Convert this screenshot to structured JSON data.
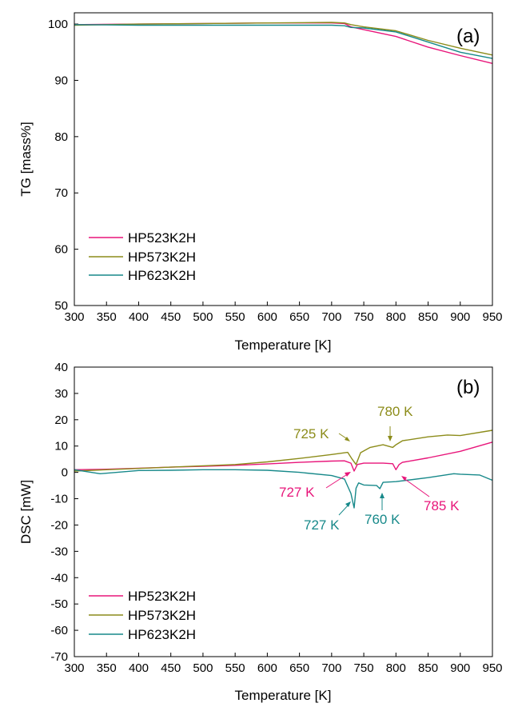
{
  "colors": {
    "HP523K2H": "#e8157a",
    "HP573K2H": "#8c8c1a",
    "HP623K2H": "#17898a"
  },
  "chart_data": [
    {
      "type": "line",
      "panel_label": "(a)",
      "xlabel": "Temperature [K]",
      "ylabel": "TG [mass%]",
      "xlim": [
        300,
        950
      ],
      "ylim": [
        50,
        102
      ],
      "x_ticks": [
        300,
        350,
        400,
        450,
        500,
        550,
        600,
        650,
        700,
        750,
        800,
        850,
        900,
        950
      ],
      "y_ticks": [
        50,
        60,
        70,
        80,
        90,
        100
      ],
      "grid": false,
      "legend_position": "lower-left",
      "series": [
        {
          "name": "HP523K2H",
          "x": [
            300,
            400,
            500,
            600,
            700,
            720,
            730,
            750,
            800,
            850,
            900,
            950
          ],
          "y": [
            99.9,
            100.0,
            100.1,
            100.2,
            100.2,
            100.1,
            99.5,
            99.0,
            97.8,
            95.9,
            94.4,
            93.0
          ]
        },
        {
          "name": "HP573K2H",
          "x": [
            300,
            400,
            500,
            600,
            700,
            720,
            730,
            750,
            800,
            850,
            900,
            950
          ],
          "y": [
            99.8,
            100.0,
            100.1,
            100.2,
            100.3,
            100.2,
            99.9,
            99.5,
            98.8,
            97.1,
            95.7,
            94.5
          ]
        },
        {
          "name": "HP623K2H",
          "x": [
            300,
            400,
            500,
            600,
            700,
            720,
            730,
            750,
            800,
            850,
            900,
            950
          ],
          "y": [
            99.9,
            99.8,
            99.8,
            99.8,
            99.8,
            99.7,
            99.4,
            99.3,
            98.6,
            96.8,
            95.0,
            93.9
          ]
        }
      ],
      "annotations": []
    },
    {
      "type": "line",
      "panel_label": "(b)",
      "xlabel": "Temperature [K]",
      "ylabel": "DSC [mW]",
      "xlim": [
        300,
        950
      ],
      "ylim": [
        -70,
        40
      ],
      "x_ticks": [
        300,
        350,
        400,
        450,
        500,
        550,
        600,
        650,
        700,
        750,
        800,
        850,
        900,
        950
      ],
      "y_ticks": [
        -70,
        -60,
        -50,
        -40,
        -30,
        -20,
        -10,
        0,
        10,
        20,
        30,
        40
      ],
      "grid": false,
      "legend_position": "lower-left",
      "series": [
        {
          "name": "HP523K2H",
          "x": [
            300,
            350,
            400,
            450,
            500,
            550,
            600,
            650,
            700,
            720,
            730,
            735,
            740,
            750,
            780,
            795,
            800,
            805,
            810,
            850,
            900,
            950
          ],
          "y": [
            1.0,
            1.2,
            1.6,
            2.0,
            2.3,
            2.7,
            3.2,
            3.8,
            4.3,
            4.4,
            3.5,
            0.5,
            3.0,
            3.5,
            3.5,
            3.3,
            1.0,
            3.0,
            3.8,
            5.5,
            8.0,
            11.5
          ]
        },
        {
          "name": "HP573K2H",
          "x": [
            300,
            350,
            400,
            450,
            500,
            550,
            600,
            650,
            700,
            725,
            732,
            738,
            745,
            760,
            780,
            795,
            800,
            810,
            850,
            880,
            900,
            950
          ],
          "y": [
            0.5,
            1.0,
            1.5,
            2.0,
            2.5,
            3.0,
            4.0,
            5.3,
            6.8,
            7.6,
            5.0,
            3.0,
            7.5,
            9.5,
            10.5,
            9.5,
            10.5,
            12.0,
            13.5,
            14.2,
            14.0,
            16.0
          ]
        },
        {
          "name": "HP623K2H",
          "x": [
            300,
            340,
            400,
            450,
            500,
            550,
            600,
            650,
            700,
            720,
            730,
            735,
            738,
            742,
            750,
            770,
            775,
            780,
            800,
            850,
            890,
            900,
            930,
            950
          ],
          "y": [
            1.0,
            -0.5,
            0.7,
            0.8,
            1.0,
            1.0,
            0.8,
            0.0,
            -1.2,
            -2.5,
            -8.0,
            -13.5,
            -6.0,
            -4.0,
            -4.8,
            -5.0,
            -6.2,
            -3.8,
            -3.5,
            -2.0,
            -0.5,
            -0.7,
            -1.0,
            -3.0
          ]
        }
      ],
      "annotations": [
        {
          "text": "725 K",
          "series": "HP573K2H"
        },
        {
          "text": "780 K",
          "series": "HP573K2H"
        },
        {
          "text": "727 K",
          "series": "HP523K2H"
        },
        {
          "text": "785 K",
          "series": "HP523K2H"
        },
        {
          "text": "727 K",
          "series": "HP623K2H"
        },
        {
          "text": "760 K",
          "series": "HP623K2H"
        }
      ]
    }
  ]
}
